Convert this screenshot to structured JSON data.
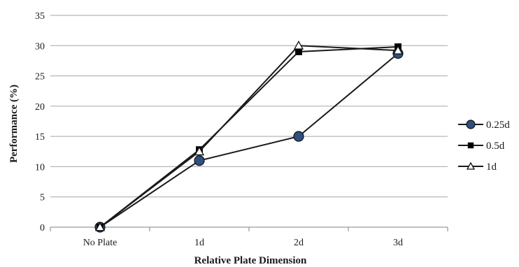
{
  "chart_data": {
    "type": "line",
    "title": "",
    "xlabel": "Relative Plate Dimension",
    "ylabel": "Performance (%)",
    "categories": [
      "No Plate",
      "1d",
      "2d",
      "3d"
    ],
    "ylim": [
      0,
      35
    ],
    "yticks": [
      0,
      5,
      10,
      15,
      20,
      25,
      30,
      35
    ],
    "grid": "horizontal",
    "legend_position": "right",
    "series": [
      {
        "name": "0.25d",
        "values": [
          0,
          11,
          15,
          28.7
        ],
        "marker": "circle",
        "marker_color": "#2f4f7f",
        "line_color": "#1a1a1a"
      },
      {
        "name": "0.5d",
        "values": [
          0,
          12.8,
          29,
          29.8
        ],
        "marker": "square",
        "marker_color": "#000000",
        "line_color": "#1a1a1a"
      },
      {
        "name": "1d",
        "values": [
          0,
          12.5,
          30,
          29.2
        ],
        "marker": "triangle",
        "marker_color": "#ffffff",
        "line_color": "#1a1a1a"
      }
    ]
  }
}
